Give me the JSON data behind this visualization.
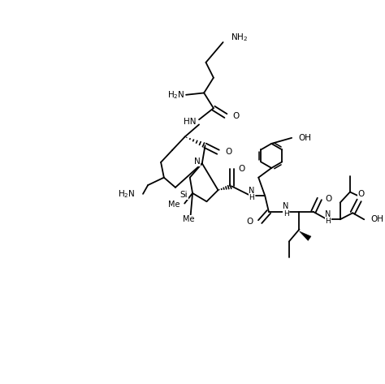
{
  "bg_color": "#ffffff",
  "line_color": "#000000",
  "lw": 1.3,
  "fs": 7.5,
  "fig_width": 4.74,
  "fig_height": 4.73,
  "xlim": [
    0,
    10
  ],
  "ylim": [
    0,
    10
  ]
}
